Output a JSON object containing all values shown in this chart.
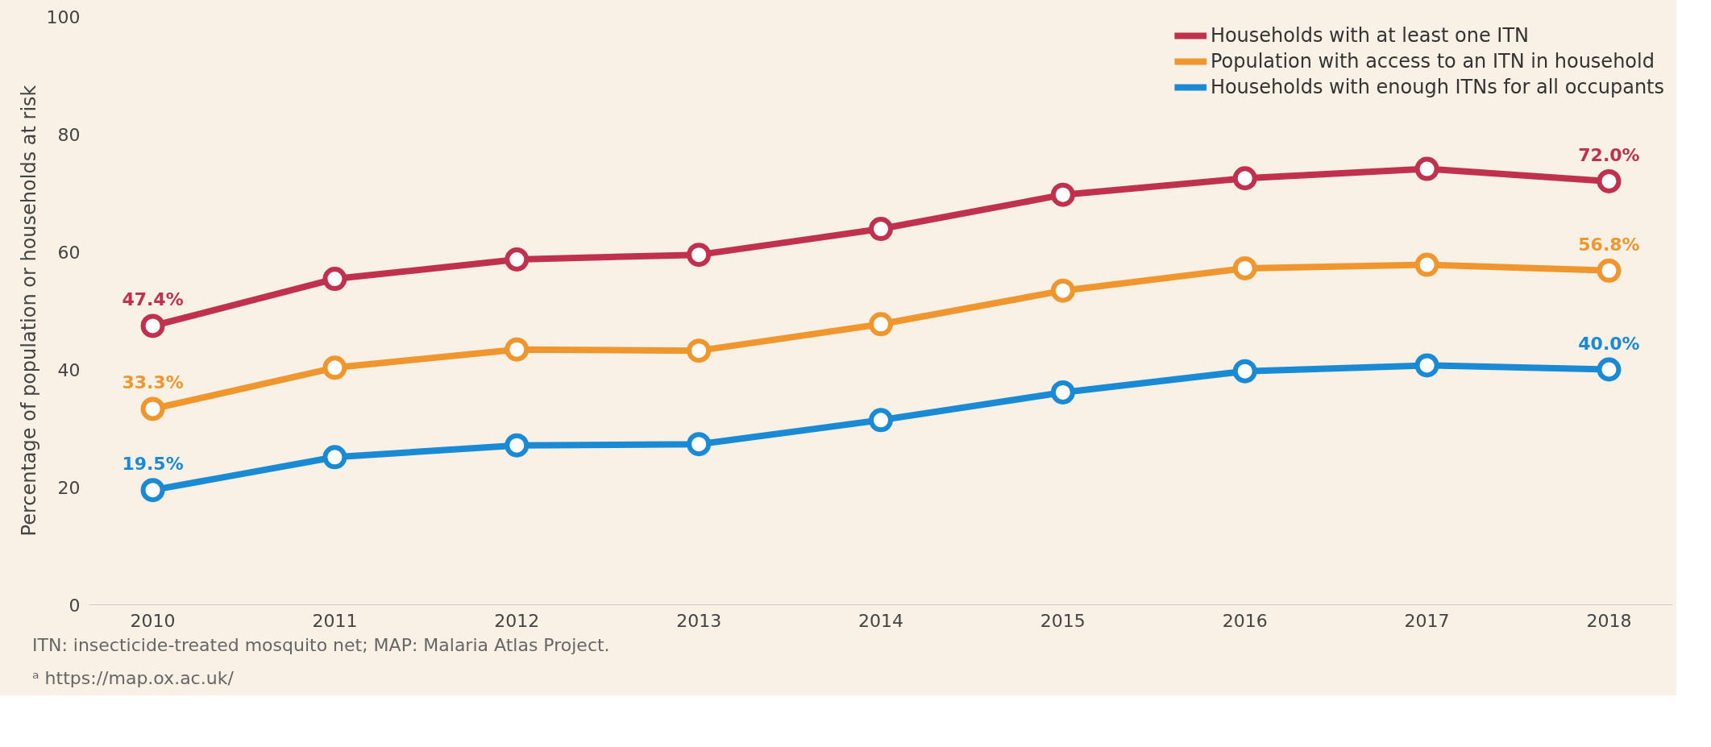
{
  "chart_data": {
    "type": "line",
    "ylabel": "Percentage of population or households at risk",
    "categories": [
      "2010",
      "2011",
      "2012",
      "2013",
      "2014",
      "2015",
      "2016",
      "2017",
      "2018"
    ],
    "series": [
      {
        "name": "Households with at least one ITN",
        "color": "#c0314e",
        "values": [
          47.4,
          55.4,
          58.7,
          59.5,
          63.9,
          69.7,
          72.5,
          74.1,
          72.0
        ],
        "value_labels": [
          "47.4%",
          null,
          null,
          null,
          null,
          null,
          null,
          null,
          "72.0%"
        ]
      },
      {
        "name": "Population with access to an ITN in household",
        "color": "#f0962e",
        "values": [
          33.3,
          40.3,
          43.4,
          43.2,
          47.7,
          53.4,
          57.2,
          57.8,
          56.8
        ],
        "value_labels": [
          "33.3%",
          null,
          null,
          null,
          null,
          null,
          null,
          null,
          "56.8%"
        ]
      },
      {
        "name": "Households with enough ITNs for all occupants",
        "color": "#1a8ad4",
        "values": [
          19.5,
          25.1,
          27.1,
          27.3,
          31.4,
          36.1,
          39.7,
          40.7,
          40.0
        ],
        "value_labels": [
          "19.5%",
          null,
          null,
          null,
          null,
          null,
          null,
          null,
          "40.0%"
        ]
      }
    ],
    "ylim": [
      0,
      100
    ],
    "yticks": [
      0,
      20,
      40,
      60,
      80,
      100
    ],
    "grid": false,
    "legend": "top right",
    "marker": "circle",
    "line_style": "solid",
    "annotations": [
      "ITN: insecticide-treated mosquito net; MAP: Malaria Atlas Project.",
      "ᵃ https://map.ox.ac.uk/"
    ]
  }
}
